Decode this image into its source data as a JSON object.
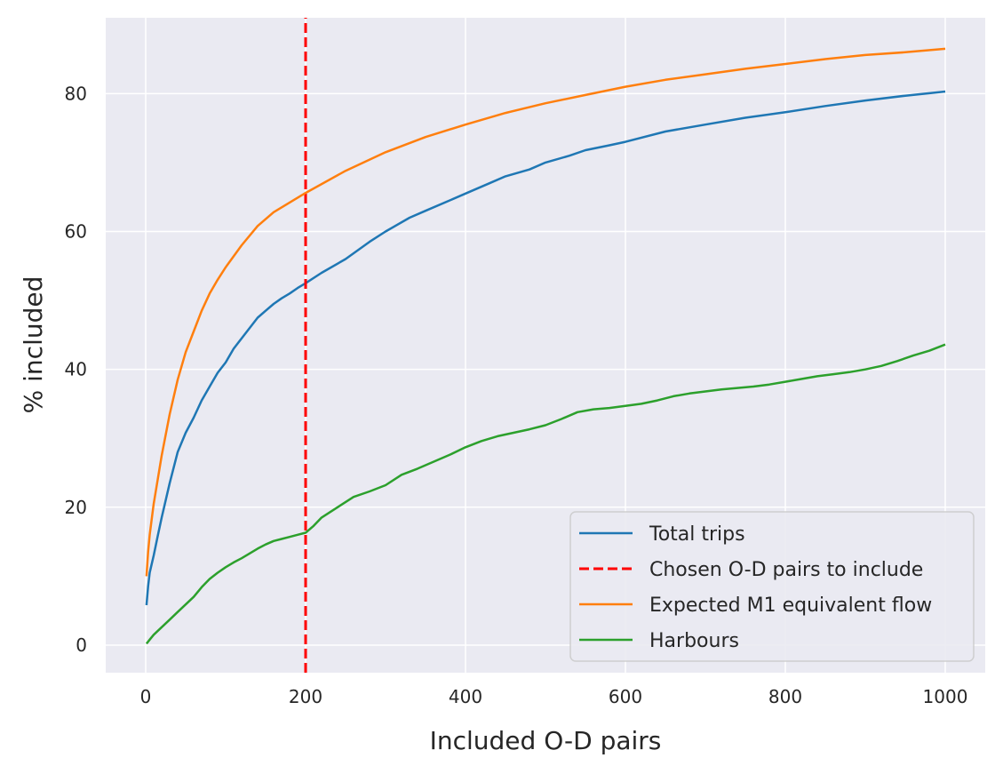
{
  "chart_data": {
    "type": "line",
    "xlabel": "Included O-D pairs",
    "ylabel": "% included",
    "xlim": [
      -50,
      1050
    ],
    "ylim": [
      -4,
      91
    ],
    "xticks": [
      0,
      200,
      400,
      600,
      800,
      1000
    ],
    "yticks": [
      0,
      20,
      40,
      60,
      80
    ],
    "grid": true,
    "legend_position": "lower right",
    "series": [
      {
        "name": "Total trips",
        "color": "#1f77b4",
        "style": "solid",
        "x": [
          1,
          3,
          5,
          10,
          15,
          20,
          30,
          40,
          50,
          60,
          70,
          80,
          90,
          100,
          110,
          120,
          130,
          140,
          150,
          160,
          170,
          180,
          190,
          200,
          220,
          250,
          280,
          300,
          330,
          350,
          380,
          400,
          430,
          450,
          480,
          500,
          530,
          550,
          580,
          600,
          650,
          700,
          750,
          800,
          850,
          900,
          950,
          1000
        ],
        "values": [
          5.8,
          8.5,
          10.5,
          13.0,
          15.8,
          18.5,
          23.5,
          28.0,
          30.8,
          33.0,
          35.5,
          37.5,
          39.5,
          41.0,
          43.0,
          44.5,
          46.0,
          47.5,
          48.5,
          49.5,
          50.3,
          51.0,
          51.8,
          52.5,
          54.0,
          56.0,
          58.5,
          60.0,
          62.0,
          63.0,
          64.5,
          65.5,
          67.0,
          68.0,
          69.0,
          70.0,
          71.0,
          71.8,
          72.5,
          73.0,
          74.5,
          75.5,
          76.5,
          77.3,
          78.2,
          79.0,
          79.7,
          80.3
        ]
      },
      {
        "name": "Chosen O-D pairs to include",
        "color": "#ff0000",
        "style": "dashed",
        "x": [
          200,
          200
        ],
        "values": [
          -4,
          91
        ]
      },
      {
        "name": "Expected M1 equivalent flow",
        "color": "#ff7f0e",
        "style": "solid",
        "x": [
          1,
          3,
          5,
          10,
          15,
          20,
          30,
          40,
          50,
          60,
          70,
          80,
          90,
          100,
          120,
          140,
          160,
          180,
          200,
          250,
          300,
          350,
          400,
          450,
          500,
          550,
          600,
          650,
          700,
          750,
          800,
          850,
          900,
          950,
          1000
        ],
        "values": [
          10.0,
          13.5,
          16.0,
          20.5,
          24.0,
          27.5,
          33.5,
          38.5,
          42.5,
          45.5,
          48.5,
          51.0,
          53.0,
          54.8,
          58.0,
          60.8,
          62.8,
          64.2,
          65.6,
          68.8,
          71.5,
          73.7,
          75.5,
          77.2,
          78.6,
          79.8,
          81.0,
          82.0,
          82.8,
          83.6,
          84.3,
          85.0,
          85.6,
          86.0,
          86.5
        ]
      },
      {
        "name": "Harbours",
        "color": "#2ca02c",
        "style": "solid",
        "x": [
          1,
          5,
          10,
          20,
          30,
          40,
          50,
          60,
          70,
          80,
          90,
          100,
          110,
          120,
          130,
          140,
          150,
          160,
          170,
          180,
          190,
          200,
          210,
          220,
          240,
          260,
          280,
          300,
          320,
          340,
          360,
          380,
          400,
          420,
          440,
          460,
          480,
          500,
          520,
          540,
          560,
          580,
          600,
          620,
          640,
          660,
          680,
          700,
          720,
          740,
          760,
          780,
          800,
          820,
          840,
          860,
          880,
          900,
          920,
          940,
          960,
          980,
          1000
        ],
        "values": [
          0.2,
          0.8,
          1.5,
          2.6,
          3.7,
          4.8,
          5.9,
          7.0,
          8.4,
          9.6,
          10.5,
          11.3,
          12.0,
          12.6,
          13.3,
          14.0,
          14.6,
          15.1,
          15.4,
          15.7,
          16.0,
          16.3,
          17.3,
          18.5,
          20.0,
          21.5,
          22.3,
          23.2,
          24.7,
          25.6,
          26.6,
          27.6,
          28.7,
          29.6,
          30.3,
          30.8,
          31.3,
          31.9,
          32.8,
          33.8,
          34.2,
          34.4,
          34.7,
          35.0,
          35.5,
          36.1,
          36.5,
          36.8,
          37.1,
          37.3,
          37.5,
          37.8,
          38.2,
          38.6,
          39.0,
          39.3,
          39.6,
          40.0,
          40.5,
          41.2,
          42.0,
          42.7,
          43.6
        ]
      }
    ]
  }
}
